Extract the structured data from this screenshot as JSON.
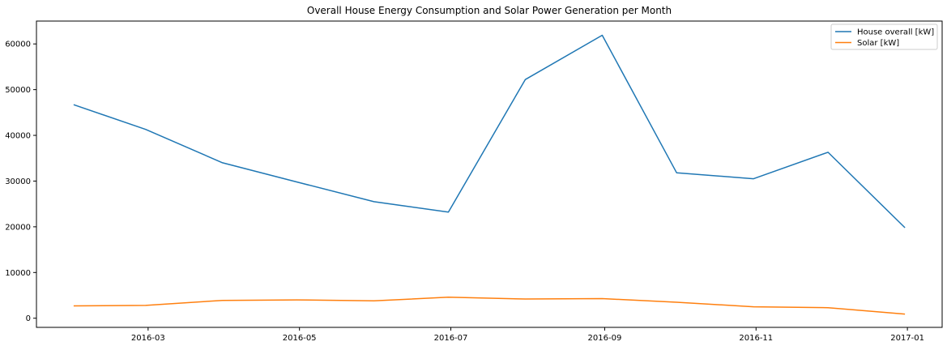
{
  "chart_data": {
    "type": "line",
    "title": "Overall House Energy Consumption and Solar Power Generation per Month",
    "xlabel": "",
    "ylabel": "",
    "x": [
      "2016-01-31",
      "2016-02-29",
      "2016-03-31",
      "2016-04-30",
      "2016-05-31",
      "2016-06-30",
      "2016-07-31",
      "2016-08-31",
      "2016-09-30",
      "2016-10-31",
      "2016-11-30",
      "2016-12-31"
    ],
    "series": [
      {
        "name": "House overall [kW]",
        "color": "#1f77b4",
        "values": [
          46700,
          41300,
          34000,
          29800,
          25500,
          23200,
          52200,
          61900,
          31800,
          30500,
          36300,
          19800
        ]
      },
      {
        "name": "Solar [kW]",
        "color": "#ff7f0e",
        "values": [
          2700,
          2800,
          3900,
          4000,
          3800,
          4600,
          4200,
          4300,
          3500,
          2500,
          2300,
          900
        ]
      }
    ],
    "xticks": [
      "2016-03",
      "2016-05",
      "2016-07",
      "2016-09",
      "2016-11",
      "2017-01"
    ],
    "yticks": [
      0,
      10000,
      20000,
      30000,
      40000,
      50000,
      60000
    ],
    "xlim": [
      "2016-01-16",
      "2017-01-15"
    ],
    "ylim": [
      -2000,
      65000
    ],
    "grid": false,
    "legend_position": "top-right"
  }
}
